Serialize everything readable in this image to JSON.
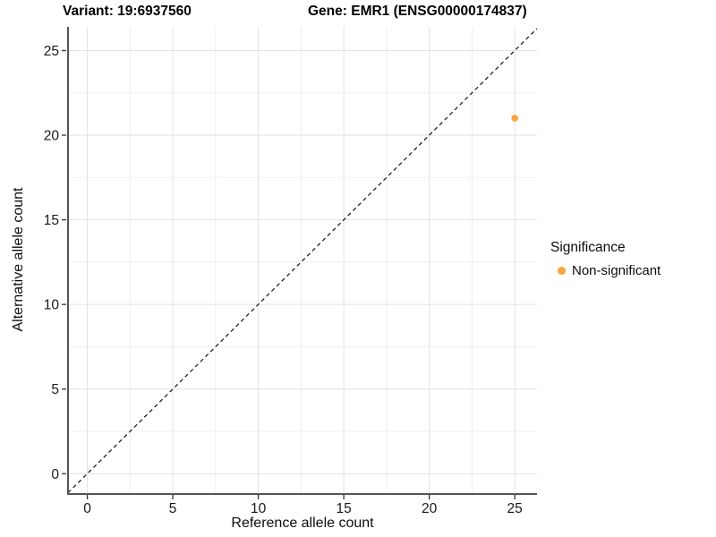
{
  "chart_data": {
    "type": "scatter",
    "titles": [
      "Variant: 19:6937560",
      "Gene: EMR1 (ENSG00000174837)"
    ],
    "xlabel": "Reference allele count",
    "ylabel": "Alternative allele count",
    "xticks": [
      0,
      5,
      10,
      15,
      20,
      25
    ],
    "yticks": [
      0,
      5,
      10,
      15,
      20,
      25
    ],
    "xlim": [
      -1.13,
      26.3
    ],
    "ylim": [
      -1.15,
      26.4
    ],
    "minor_grid_step": 2.5,
    "grid": "major+minor",
    "reference_line": {
      "kind": "identity y=x",
      "style": "dashed",
      "color": "#111111"
    },
    "series": [
      {
        "name": "Non-significant",
        "color": "#FBA33C",
        "points": [
          {
            "x": 25,
            "y": 21
          }
        ]
      }
    ],
    "legend": {
      "title": "Significance",
      "position": "right",
      "items": [
        {
          "label": "Non-significant",
          "color": "#FBA33C"
        }
      ]
    }
  },
  "style_colors": {
    "axis_line": "#555555",
    "tick": "#333333",
    "tick_label": "#1a1a1a",
    "grid_major": "#e2e2e2",
    "grid_minor": "#efefef"
  }
}
